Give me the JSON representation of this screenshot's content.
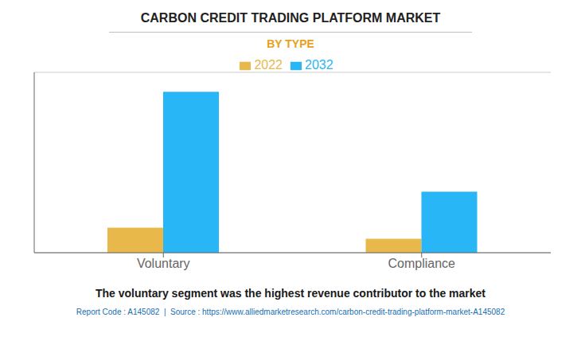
{
  "chart_data": {
    "type": "bar",
    "title": "CARBON CREDIT TRADING PLATFORM MARKET",
    "subtitle": "BY TYPE",
    "categories": [
      "Voluntary",
      "Compliance"
    ],
    "series": [
      {
        "name": "2022",
        "color": "#E8B84B",
        "values": [
          0.9,
          0.5
        ]
      },
      {
        "name": "2032",
        "color": "#29B6F6",
        "values": [
          5.8,
          2.2
        ]
      }
    ],
    "ylim": [
      0,
      6.5
    ],
    "yticks": [
      0,
      1.0833333333333333,
      2.1666666666666665,
      3.25,
      4.333333333333333,
      5.416666666666667,
      6.5
    ],
    "grid": true,
    "tick_labels": "x",
    "legend": "top",
    "annotations": [
      "The voluntary segment was the highest revenue contributor to the market",
      "Report Code : A145082  |  Source : https://www.alliedmarketresearch.com/carbon-credit-trading-platform-market-A145082"
    ]
  }
}
